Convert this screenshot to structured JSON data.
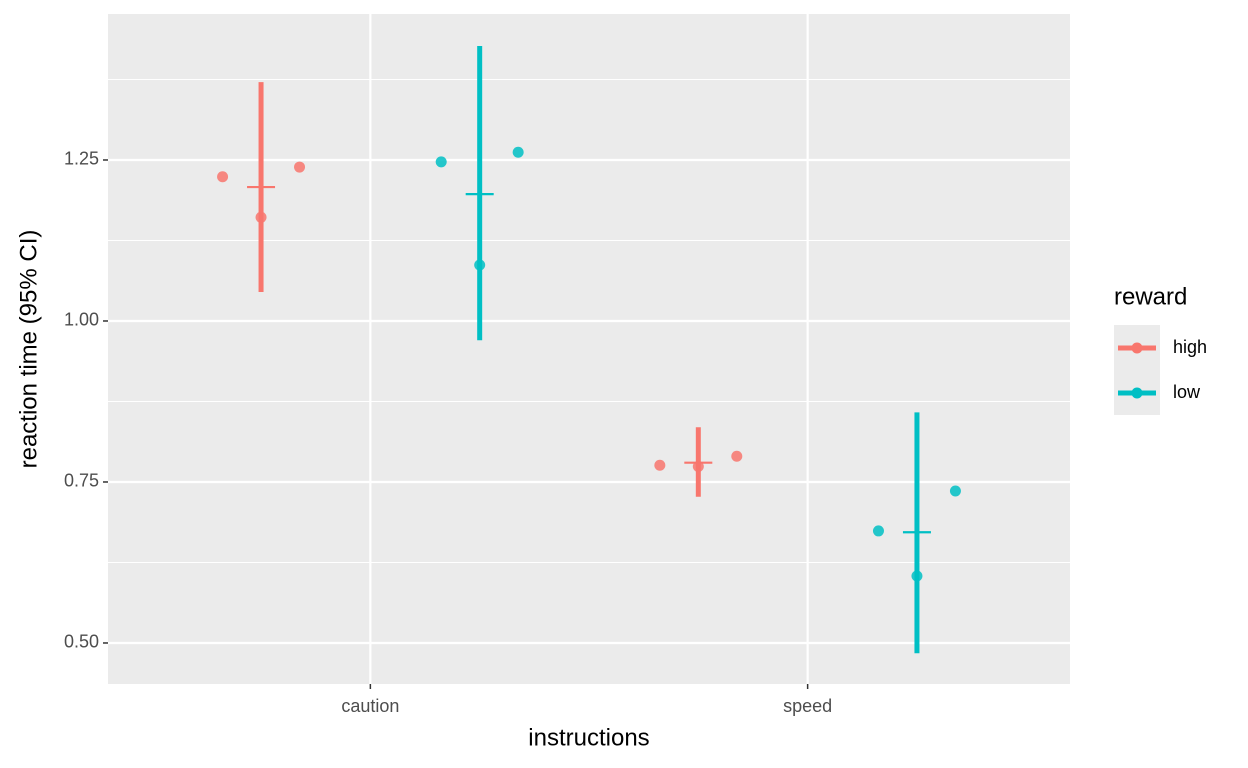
{
  "chart_data": {
    "type": "pointrange",
    "x_label": "instructions",
    "y_label": "reaction time (95% CI)",
    "categories": [
      "caution",
      "speed"
    ],
    "legend_title": "reward",
    "legend_position": "right",
    "grid": true,
    "ylim": [
      0.4363,
      1.4767
    ],
    "yticks": [
      {
        "value": 0.5,
        "label": "0.50"
      },
      0.75,
      {
        "value": 1,
        "label": "1.00"
      },
      1.25
    ],
    "y_minor_ticks": [
      0.625,
      0.875,
      1.125,
      1.375
    ],
    "series": [
      {
        "name": "high",
        "color": "#F8766D",
        "values": [
          1.208,
          0.78
        ],
        "lower": [
          1.045,
          0.727
        ],
        "upper": [
          1.371,
          0.835
        ],
        "points": [
          [
            1.224,
            1.161,
            1.239
          ],
          [
            0.776,
            0.774,
            0.79
          ]
        ]
      },
      {
        "name": "low",
        "color": "#00BFC4",
        "values": [
          1.197,
          0.672
        ],
        "lower": [
          0.97,
          0.484
        ],
        "upper": [
          1.427,
          0.858
        ],
        "points": [
          [
            1.247,
            1.087,
            1.262
          ],
          [
            0.674,
            0.604,
            0.736
          ]
        ]
      }
    ]
  }
}
